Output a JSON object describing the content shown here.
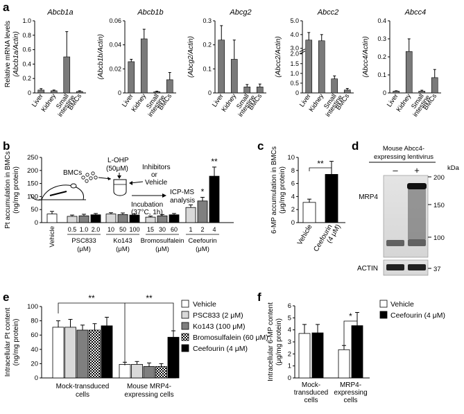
{
  "panels": {
    "a": "a",
    "b": "b",
    "c": "c",
    "d": "d",
    "e": "e",
    "f": "f"
  },
  "colors": {
    "bar_gray": "#7a7a7a",
    "bar_black": "#000000",
    "bar_white": "#ffffff",
    "bar_lightgray": "#d9d9d9",
    "bar_darkgray": "#7f7f7f"
  },
  "panel_a": {
    "ylabel_lines": [
      "Relative mRNA levels",
      "(Abcb1a/Actin)"
    ],
    "categories": [
      "Liver",
      "Kidney",
      "Small intestine",
      "BMCs"
    ],
    "charts": [
      {
        "title": "Abcb1a",
        "ylabel": "",
        "yticks": [
          "0",
          "0.2",
          "0.4",
          "0.6",
          "0.8",
          "1.0"
        ],
        "ylim": [
          0,
          1.0
        ],
        "values": [
          0.04,
          0.03,
          0.5,
          0.02
        ],
        "errors": [
          0.02,
          0.01,
          0.35,
          0.01
        ]
      },
      {
        "title": "Abcb1b",
        "ylabel": "(Abcb1b/Actin)",
        "yticks": [
          "0",
          "0.02",
          "0.04",
          "0.06"
        ],
        "ylim": [
          0,
          0.06
        ],
        "values": [
          0.026,
          0.045,
          0.001,
          0.011
        ],
        "errors": [
          0.002,
          0.008,
          0.0005,
          0.006
        ]
      },
      {
        "title": "Abcg2",
        "ylabel": "(Abcg2/Actin)",
        "yticks": [
          "0",
          "0.1",
          "0.2",
          "0.3"
        ],
        "ylim": [
          0,
          0.3
        ],
        "values": [
          0.22,
          0.14,
          0.025,
          0.025
        ],
        "errors": [
          0.06,
          0.08,
          0.01,
          0.012
        ]
      },
      {
        "title": "Abcc2",
        "ylabel": "(Abcc2/Actin)",
        "yticks": [
          "0",
          "0.5",
          "1.0",
          "1.5",
          "2.0",
          "3.0",
          "4.0",
          "5.0"
        ],
        "ylim": [
          0,
          5.0
        ],
        "values": [
          3.6,
          3.55,
          0.72,
          0.15
        ],
        "errors": [
          0.55,
          0.45,
          0.15,
          0.08
        ]
      },
      {
        "title": "Abcc4",
        "ylabel": "(Abcc4/Actin)",
        "yticks": [
          "0",
          "0.1",
          "0.2",
          "0.3",
          "0.4"
        ],
        "ylim": [
          0,
          0.4
        ],
        "values": [
          0.01,
          0.23,
          0.01,
          0.085
        ],
        "errors": [
          0.002,
          0.07,
          0.005,
          0.045
        ]
      }
    ]
  },
  "chart_data": [
    {
      "type": "bar",
      "panel": "b",
      "ylabel_lines": [
        "Pt accumulation in BMCs",
        "(ng/mg protein)"
      ],
      "yticks": [
        "0",
        "50",
        "100",
        "150",
        "200",
        "250"
      ],
      "ylim": [
        0,
        250
      ],
      "groups": [
        {
          "label": "Vehicle",
          "unit": "",
          "doses": [
            ""
          ],
          "values": [
            33
          ],
          "errors": [
            10
          ],
          "fills": [
            "#ffffff"
          ]
        },
        {
          "label": "PSC833",
          "unit": "(μM)",
          "doses": [
            "0.5",
            "1.0",
            "2.0"
          ],
          "values": [
            24,
            26,
            30
          ],
          "errors": [
            5,
            6,
            5
          ],
          "fills": [
            "#d9d9d9",
            "#7f7f7f",
            "#000000"
          ]
        },
        {
          "label": "Ko143",
          "unit": "(μM)",
          "doses": [
            "10",
            "50",
            "100"
          ],
          "values": [
            33,
            31,
            29
          ],
          "errors": [
            5,
            6,
            4
          ],
          "fills": [
            "#d9d9d9",
            "#7f7f7f",
            "#000000"
          ]
        },
        {
          "label": "Bromosulfalein",
          "unit": "(μM)",
          "doses": [
            "15",
            "30",
            "60"
          ],
          "values": [
            21,
            26,
            30
          ],
          "errors": [
            4,
            5,
            5
          ],
          "fills": [
            "#d9d9d9",
            "#7f7f7f",
            "#000000"
          ]
        },
        {
          "label": "Ceefourin",
          "unit": "(μM)",
          "doses": [
            "1",
            "2",
            "4"
          ],
          "values": [
            58,
            83,
            178
          ],
          "errors": [
            10,
            14,
            35
          ],
          "fills": [
            "#d9d9d9",
            "#7f7f7f",
            "#000000"
          ]
        }
      ],
      "significance": [
        "*",
        "**"
      ],
      "schematic": {
        "cells": "BMCs",
        "drug": "L-OHP",
        "drug_conc": "(50μM)",
        "inhibitors": [
          "Inhibitors",
          "or",
          "Vehicle"
        ],
        "incubation": "Incubation",
        "incubation_cond": "(37°C, 1h)",
        "analysis": [
          "ICP-MS",
          "analysis"
        ]
      }
    },
    {
      "type": "bar",
      "panel": "c",
      "ylabel_lines": [
        "6-MP accumulation in BMCs",
        "(μg/mg protein)"
      ],
      "yticks": [
        "0",
        "2",
        "4",
        "6",
        "8",
        "10"
      ],
      "ylim": [
        0,
        10
      ],
      "categories": [
        "Vehicle",
        "Ceefourin (4 μM)"
      ],
      "values": [
        3.1,
        7.4
      ],
      "errors": [
        0.5,
        2.0
      ],
      "fills": [
        "#ffffff",
        "#000000"
      ],
      "significance": "**"
    },
    {
      "type": "bar",
      "panel": "e",
      "ylabel_lines": [
        "Intracellular Pt content",
        "(ng/mg protein)"
      ],
      "yticks": [
        "0",
        "20",
        "40",
        "60",
        "80",
        "100"
      ],
      "ylim": [
        0,
        100
      ],
      "group_labels": [
        [
          "Mock-transduced",
          "cells"
        ],
        [
          "Mouse MRP4-",
          "expressing cells"
        ]
      ],
      "series": [
        {
          "name": "Vehicle",
          "fill": "#ffffff",
          "pattern": "none",
          "values": [
            71,
            19
          ],
          "errors": [
            9,
            3
          ]
        },
        {
          "name": "PSC833 (2 μM)",
          "fill": "#d9d9d9",
          "pattern": "none",
          "values": [
            71,
            19
          ],
          "errors": [
            11,
            4
          ]
        },
        {
          "name": "Ko143 (100 μM)",
          "fill": "#7f7f7f",
          "pattern": "none",
          "values": [
            67,
            16
          ],
          "errors": [
            7,
            5
          ]
        },
        {
          "name": "Bromosulfalein (60 μM)",
          "fill": "#ffffff",
          "pattern": "check",
          "values": [
            67,
            16
          ],
          "errors": [
            9,
            4
          ]
        },
        {
          "name": "Ceefourin (4 μM)",
          "fill": "#000000",
          "pattern": "none",
          "values": [
            73,
            57
          ],
          "errors": [
            12,
            9
          ]
        }
      ],
      "significance": [
        "**",
        "**"
      ]
    },
    {
      "type": "bar",
      "panel": "f",
      "ylabel_lines": [
        "Intracellular 6-MP content",
        "(μg/mg protein)"
      ],
      "yticks": [
        "0",
        "1",
        "2",
        "3",
        "4",
        "5",
        "6"
      ],
      "ylim": [
        0,
        6
      ],
      "group_labels": [
        [
          "Mock-",
          "transduced",
          "cells"
        ],
        [
          "MRP4-",
          "expressing",
          "cells"
        ]
      ],
      "series": [
        {
          "name": "Vehicle",
          "fill": "#ffffff",
          "values": [
            3.7,
            2.35
          ],
          "errors": [
            0.75,
            0.35
          ]
        },
        {
          "name": "Ceefourin (4 μM)",
          "fill": "#000000",
          "values": [
            3.75,
            4.35
          ],
          "errors": [
            0.7,
            1.1
          ]
        }
      ],
      "significance": "*"
    }
  ],
  "panel_d": {
    "title_lines": [
      "Mouse Abcc4-",
      "expressing lentivirus"
    ],
    "lanes": [
      "–",
      "+"
    ],
    "kda_label": "kDa",
    "markers": [
      "200",
      "150",
      "100",
      "37"
    ],
    "bands": [
      "MRP4",
      "ACTIN"
    ]
  }
}
